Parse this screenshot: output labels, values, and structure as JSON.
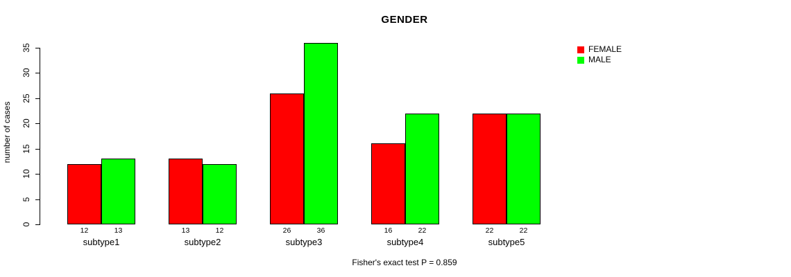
{
  "chart_data": {
    "type": "bar",
    "title": "GENDER",
    "ylabel": "number of cases",
    "xlabel": "",
    "caption": "Fisher's exact test P = 0.859",
    "categories": [
      "subtype1",
      "subtype2",
      "subtype3",
      "subtype4",
      "subtype5"
    ],
    "series": [
      {
        "name": "FEMALE",
        "color": "#FF0000",
        "values": [
          12,
          13,
          26,
          16,
          22
        ]
      },
      {
        "name": "MALE",
        "color": "#00FF00",
        "values": [
          13,
          12,
          36,
          22,
          22
        ]
      }
    ],
    "bar_value_labels": [
      [
        "12",
        "13"
      ],
      [
        "13",
        "12"
      ],
      [
        "26",
        "36"
      ],
      [
        "16",
        "22"
      ],
      [
        "22",
        "22"
      ]
    ],
    "ylim": [
      0,
      35
    ],
    "yticks": [
      0,
      5,
      10,
      15,
      20,
      25,
      30,
      35
    ],
    "grid": false,
    "legend_position": "top-right"
  },
  "colors": {
    "background": "#FFFFFF",
    "axis": "#000000",
    "bar_border": "#000000",
    "female": "#FF0000",
    "male": "#00FF00"
  }
}
